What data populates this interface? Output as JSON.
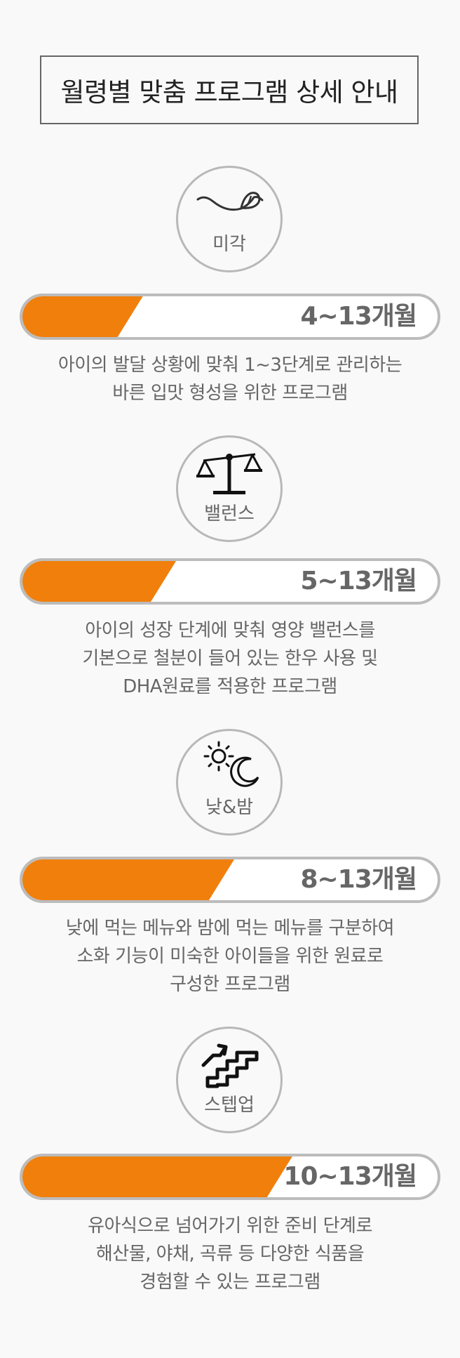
{
  "title": "월령별 맞춤 프로그램 상세 안내",
  "accent_color": "#f07f0c",
  "programs": [
    {
      "icon": "tongue-icon",
      "label": "미각",
      "months": "4~13개월",
      "progress_percent": 29,
      "desc": [
        "아이의 발달 상황에 맞춰 1~3단계로 관리하는",
        "바른 입맛 형성을 위한 프로그램"
      ]
    },
    {
      "icon": "balance-scale-icon",
      "label": "밸런스",
      "months": "5~13개월",
      "progress_percent": 37,
      "desc": [
        "아이의 성장 단계에 맞춰 영양 밸런스를",
        "기본으로 철분이 들어 있는 한우 사용 및",
        "DHA원료를 적용한 프로그램"
      ]
    },
    {
      "icon": "sun-moon-icon",
      "label": "낮&밤",
      "months": "8~13개월",
      "progress_percent": 51,
      "desc": [
        "낮에 먹는 메뉴와 밤에 먹는 메뉴를 구분하여",
        "소화 기능이 미숙한 아이들을 위한 원료로",
        "구성한 프로그램"
      ]
    },
    {
      "icon": "stairs-up-icon",
      "label": "스텝업",
      "months": "10~13개월",
      "progress_percent": 65,
      "desc": [
        "유아식으로 넘어가기 위한 준비 단계로",
        "해산물, 야채, 곡류 등 다양한 식품을",
        "경험할 수 있는 프로그램"
      ]
    }
  ]
}
